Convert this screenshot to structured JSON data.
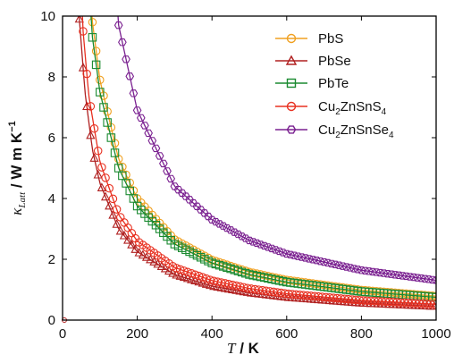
{
  "chart_data": {
    "type": "line",
    "title": "",
    "xlabel": "T / K",
    "ylabel": "κ_Latt / W m K^-1",
    "xlim": [
      0,
      1000
    ],
    "ylim": [
      0,
      10
    ],
    "x_ticks": [
      0,
      200,
      400,
      600,
      800,
      1000
    ],
    "y_ticks": [
      0,
      2,
      4,
      6,
      8,
      10
    ],
    "x_tick_labels": [
      "0",
      "200",
      "400",
      "600",
      "800",
      "1000"
    ],
    "y_tick_labels": [
      "0",
      "2",
      "4",
      "6",
      "8",
      "10"
    ],
    "legend_position": "top-right",
    "series": [
      {
        "name": "PbS",
        "marker": "circle",
        "color": "#f0a020",
        "values": [
          [
            80,
            9.8
          ],
          [
            100,
            7.9
          ],
          [
            150,
            5.3
          ],
          [
            200,
            4.0
          ],
          [
            300,
            2.65
          ],
          [
            400,
            1.98
          ],
          [
            500,
            1.58
          ],
          [
            600,
            1.32
          ],
          [
            800,
            0.99
          ],
          [
            1000,
            0.79
          ]
        ]
      },
      {
        "name": "PbSe",
        "marker": "triangle",
        "color": "#b02020",
        "values": [
          [
            45,
            9.9
          ],
          [
            60,
            7.5
          ],
          [
            80,
            5.6
          ],
          [
            100,
            4.5
          ],
          [
            150,
            3.0
          ],
          [
            200,
            2.25
          ],
          [
            300,
            1.5
          ],
          [
            400,
            1.12
          ],
          [
            500,
            0.9
          ],
          [
            600,
            0.75
          ],
          [
            800,
            0.56
          ],
          [
            1000,
            0.45
          ]
        ]
      },
      {
        "name": "PbTe",
        "marker": "square",
        "color": "#1a8a30",
        "values": [
          [
            80,
            9.3
          ],
          [
            100,
            7.5
          ],
          [
            150,
            5.0
          ],
          [
            200,
            3.75
          ],
          [
            300,
            2.5
          ],
          [
            400,
            1.88
          ],
          [
            500,
            1.5
          ],
          [
            600,
            1.25
          ],
          [
            800,
            0.94
          ],
          [
            1000,
            0.75
          ]
        ]
      },
      {
        "name": "Cu2ZnSnS4",
        "marker": "circle",
        "color": "#e83020",
        "values": [
          [
            55,
            9.5
          ],
          [
            70,
            7.4
          ],
          [
            100,
            5.2
          ],
          [
            150,
            3.47
          ],
          [
            200,
            2.6
          ],
          [
            300,
            1.73
          ],
          [
            400,
            1.3
          ],
          [
            500,
            1.04
          ],
          [
            600,
            0.87
          ],
          [
            800,
            0.65
          ],
          [
            1000,
            0.52
          ]
        ]
      },
      {
        "name": "Cu2ZnSnSe4",
        "marker": "hexagon",
        "color": "#7a2090",
        "values": [
          [
            150,
            9.7
          ],
          [
            200,
            6.9
          ],
          [
            300,
            4.4
          ],
          [
            400,
            3.3
          ],
          [
            500,
            2.62
          ],
          [
            600,
            2.18
          ],
          [
            800,
            1.64
          ],
          [
            1000,
            1.31
          ]
        ]
      }
    ]
  },
  "legend": {
    "items": [
      {
        "label": "PbS",
        "color": "#f0a020",
        "marker": "circle"
      },
      {
        "label": "PbSe",
        "color": "#b02020",
        "marker": "triangle"
      },
      {
        "label": "PbTe",
        "color": "#1a8a30",
        "marker": "square"
      },
      {
        "label": "Cu2ZnSnS4",
        "color": "#e83020",
        "marker": "circle"
      },
      {
        "label": "Cu2ZnSnSe4",
        "color": "#7a2090",
        "marker": "hexagon"
      }
    ]
  },
  "axis_titles": {
    "x_var": "T",
    "x_unit": " / K",
    "y_var": "κ",
    "y_sub": "Latt",
    "y_unit": " / W m K",
    "y_sup": "−1"
  }
}
